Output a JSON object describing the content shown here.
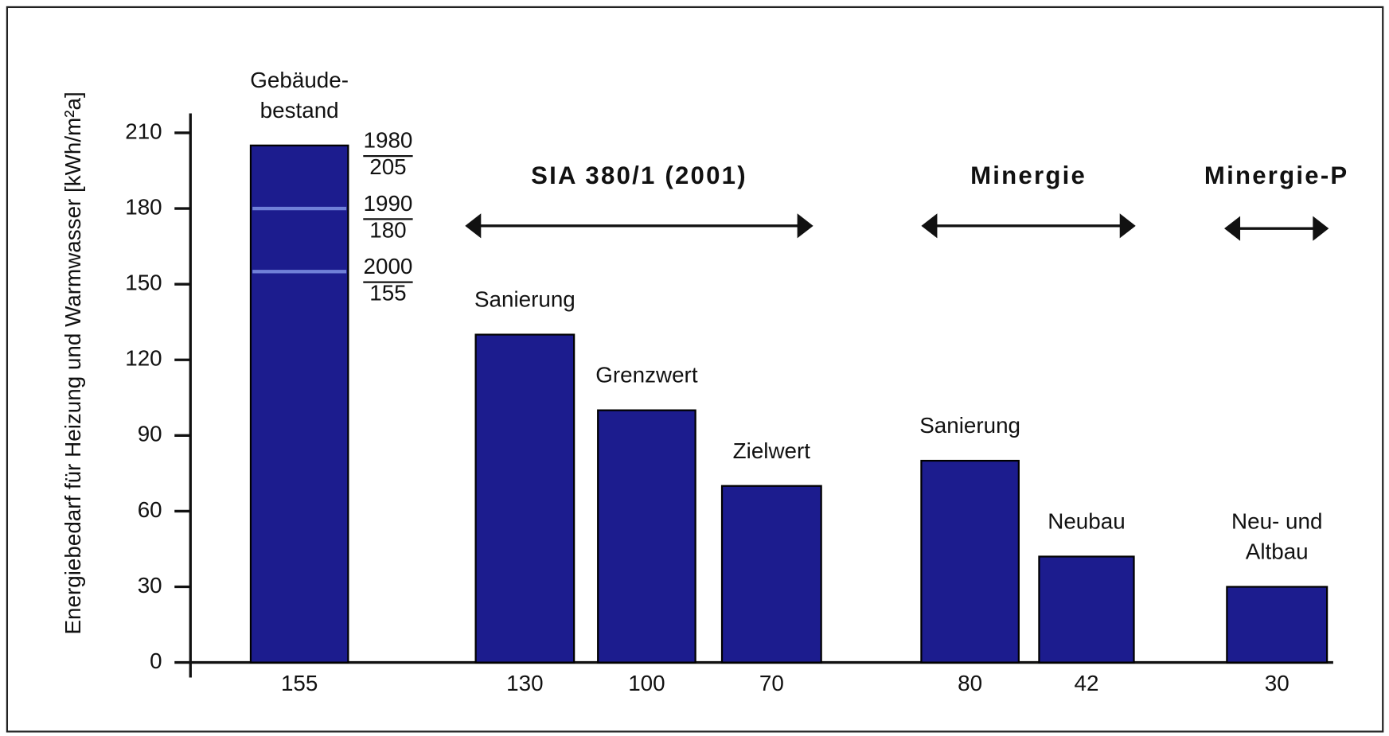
{
  "chart_data": {
    "type": "bar",
    "y_axis_label": "Energiebedarf für Heizung und Warmwasser [kWh/m²a]",
    "categories": [
      "155",
      "130",
      "100",
      "70",
      "80",
      "42",
      "30"
    ],
    "bar_labels": [
      [
        "Gebäude-",
        "bestand"
      ],
      [
        "Sanierung"
      ],
      [
        "Grenzwert"
      ],
      [
        "Zielwert"
      ],
      [
        "Sanierung"
      ],
      [
        "Neubau"
      ],
      [
        "Neu- und",
        "Altbau"
      ]
    ],
    "values": [
      205,
      130,
      100,
      70,
      80,
      42,
      30
    ],
    "color": "#1c1c8e",
    "period_markers": [
      {
        "year": "1980",
        "value": 205
      },
      {
        "year": "1990",
        "value": 180
      },
      {
        "year": "2000",
        "value": 155
      }
    ],
    "groups": [
      {
        "name": "SIA 380/1 (2001)"
      },
      {
        "name": "Minergie"
      },
      {
        "name": "Minergie-P"
      }
    ],
    "ylim": [
      0,
      210
    ],
    "yticks": [
      0,
      30,
      60,
      90,
      120,
      150,
      180,
      210
    ]
  }
}
